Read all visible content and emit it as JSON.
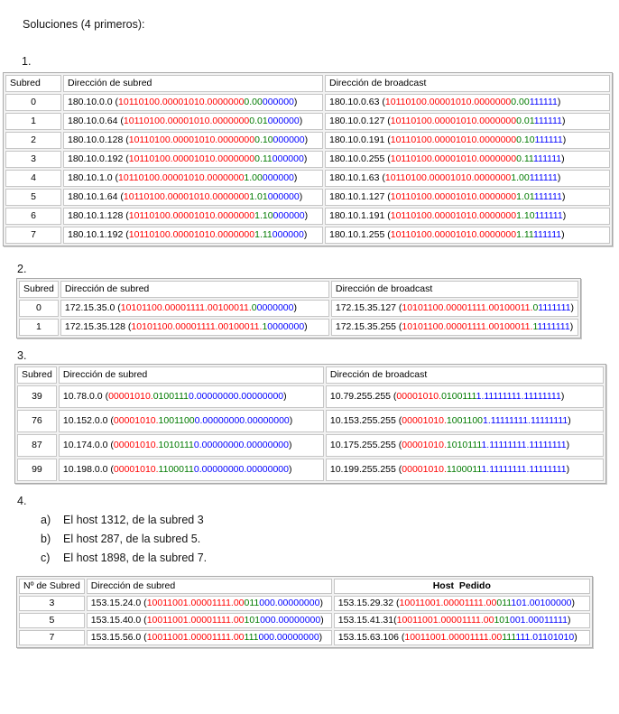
{
  "title": "Soluciones (4 primeros):",
  "colors": {
    "network_red": "#ff0000",
    "subnet_green": "#007a00",
    "host_blue": "#0000ff"
  },
  "sections": [
    {
      "label": "1.",
      "headers": [
        "Subred",
        "Dirección de subred",
        "Dirección de broadcast"
      ],
      "rows": [
        {
          "n": "0",
          "a": {
            "pre": "180.10.0.0 (",
            "red": "10110100.00001010.0000000",
            "green": "0.00",
            "blue": "000000",
            "post": ")"
          },
          "b": {
            "pre": "180.10.0.63 (",
            "red": "10110100.00001010.0000000",
            "green": "0.00",
            "blue": "111111",
            "post": ")"
          }
        },
        {
          "n": "1",
          "a": {
            "pre": "180.10.0.64 (",
            "red": "10110100.00001010.0000000",
            "green": "0.01",
            "blue": "000000",
            "post": ")"
          },
          "b": {
            "pre": "180.10.0.127 (",
            "red": "10110100.00001010.0000000",
            "green": "0.01",
            "blue": "111111",
            "post": ")"
          }
        },
        {
          "n": "2",
          "a": {
            "pre": "180.10.0.128 (",
            "red": "10110100.00001010.0000000",
            "green": "0.10",
            "blue": "000000",
            "post": ")"
          },
          "b": {
            "pre": "180.10.0.191 (",
            "red": "10110100.00001010.0000000",
            "green": "0.10",
            "blue": "111111",
            "post": ")"
          }
        },
        {
          "n": "3",
          "a": {
            "pre": "180.10.0.192 (",
            "red": "10110100.00001010.0000000",
            "green": "0.11",
            "blue": "000000",
            "post": ")"
          },
          "b": {
            "pre": "180.10.0.255 (",
            "red": "10110100.00001010.0000000",
            "green": "0.11",
            "blue": "111111",
            "post": ")"
          }
        },
        {
          "n": "4",
          "a": {
            "pre": "180.10.1.0 (",
            "red": "10110100.00001010.0000000",
            "green": "1.00",
            "blue": "000000",
            "post": ")"
          },
          "b": {
            "pre": "180.10.1.63 (",
            "red": "10110100.00001010.0000000",
            "green": "1.00",
            "blue": "111111",
            "post": ")"
          }
        },
        {
          "n": "5",
          "a": {
            "pre": "180.10.1.64 (",
            "red": "10110100.00001010.0000000",
            "green": "1.01",
            "blue": "000000",
            "post": ")"
          },
          "b": {
            "pre": "180.10.1.127 (",
            "red": "10110100.00001010.0000000",
            "green": "1.01",
            "blue": "111111",
            "post": ")"
          }
        },
        {
          "n": "6",
          "a": {
            "pre": "180.10.1.128 (",
            "red": "10110100.00001010.0000000",
            "green": "1.10",
            "blue": "000000",
            "post": ")"
          },
          "b": {
            "pre": "180.10.1.191 (",
            "red": "10110100.00001010.0000000",
            "green": "1.10",
            "blue": "111111",
            "post": ")"
          }
        },
        {
          "n": "7",
          "a": {
            "pre": "180.10.1.192 (",
            "red": "10110100.00001010.0000000",
            "green": "1.11",
            "blue": "000000",
            "post": ")"
          },
          "b": {
            "pre": "180.10.1.255 (",
            "red": "10110100.00001010.0000000",
            "green": "1.11",
            "blue": "111111",
            "post": ")"
          }
        }
      ]
    },
    {
      "label": "2.",
      "headers": [
        "Subred",
        "Dirección de subred",
        "Dirección de broadcast"
      ],
      "rows": [
        {
          "n": "0",
          "a": {
            "pre": "172.15.35.0 (",
            "red": "10101100.00001111.00100011.",
            "green": "0",
            "blue": "0000000",
            "post": ")"
          },
          "b": {
            "pre": "172.15.35.127 (",
            "red": "10101100.00001111.00100011.",
            "green": "0",
            "blue": "1111111",
            "post": ")"
          }
        },
        {
          "n": "1",
          "a": {
            "pre": "172.15.35.128 (",
            "red": "10101100.00001111.00100011.",
            "green": "1",
            "blue": "0000000",
            "post": ")"
          },
          "b": {
            "pre": "172.15.35.255 (",
            "red": "10101100.00001111.00100011.",
            "green": "1",
            "blue": "1111111",
            "post": ")"
          }
        }
      ]
    },
    {
      "label": "3.",
      "headers": [
        "Subred",
        "Dirección de subred",
        "Dirección de broadcast"
      ],
      "rows": [
        {
          "n": "39",
          "a": {
            "pre": "10.78.0.0 (",
            "red": "00001010.",
            "green": "0100111",
            "blue": "0.00000000.00000000",
            "post": ")"
          },
          "b": {
            "pre": "10.79.255.255 (",
            "red": "00001010.",
            "green": "0100111",
            "blue": "1.11111111.11111111",
            "post": ")"
          }
        },
        {
          "n": "76",
          "a": {
            "pre": "10.152.0.0 (",
            "red": "00001010.",
            "green": "1001100",
            "blue": "0.00000000.00000000",
            "post": ")"
          },
          "b": {
            "pre": "10.153.255.255 (",
            "red": "00001010.",
            "green": "1001100",
            "blue": "1.11111111.11111111",
            "post": ")"
          }
        },
        {
          "n": "87",
          "a": {
            "pre": "10.174.0.0 (",
            "red": "00001010.",
            "green": "1010111",
            "blue": "0.00000000.00000000",
            "post": ")"
          },
          "b": {
            "pre": "10.175.255.255 (",
            "red": "00001010.",
            "green": "1010111",
            "blue": "1.11111111.11111111",
            "post": ")"
          }
        },
        {
          "n": "99",
          "a": {
            "pre": "10.198.0.0 (",
            "red": "00001010.",
            "green": "1100011",
            "blue": "0.00000000.00000000",
            "post": ")"
          },
          "b": {
            "pre": "10.199.255.255 (",
            "red": "00001010.",
            "green": "1100011",
            "blue": "1.11111111.11111111",
            "post": ")"
          }
        }
      ]
    },
    {
      "label": "4.",
      "list": [
        {
          "letter": "a)",
          "text": "El host 1312, de la subred 3"
        },
        {
          "letter": "b)",
          "text": "El host 287, de la subred 5."
        },
        {
          "letter": "c)",
          "text": "El host 1898, de la subred 7."
        }
      ],
      "headers": [
        "Nº de Subred",
        "Dirección de subred",
        "Host  Pedido"
      ],
      "rows": [
        {
          "n": "3",
          "a": {
            "pre": "153.15.24.0 (",
            "red": "10011001.00001111.00",
            "green": "011",
            "blue": "000.00000000",
            "post": ")"
          },
          "b": {
            "pre": "153.15.29.32 (",
            "red": "10011001.00001111.00",
            "green": "011",
            "blue": "101.00100000",
            "post": ")"
          }
        },
        {
          "n": "5",
          "a": {
            "pre": "153.15.40.0 (",
            "red": "10011001.00001111.00",
            "green": "101",
            "blue": "000.00000000",
            "post": ")"
          },
          "b": {
            "pre": "153.15.41.31(",
            "red": "10011001.00001111.00",
            "green": "101",
            "blue": "001.00011111",
            "post": ")"
          }
        },
        {
          "n": "7",
          "a": {
            "pre": "153.15.56.0 (",
            "red": "10011001.00001111.00",
            "green": "111",
            "blue": "000.00000000",
            "post": ")"
          },
          "b": {
            "pre": "153.15.63.106 (",
            "red": "10011001.00001111.00",
            "green": "111",
            "blue": "111.01101010",
            "post": ")"
          }
        }
      ]
    }
  ]
}
